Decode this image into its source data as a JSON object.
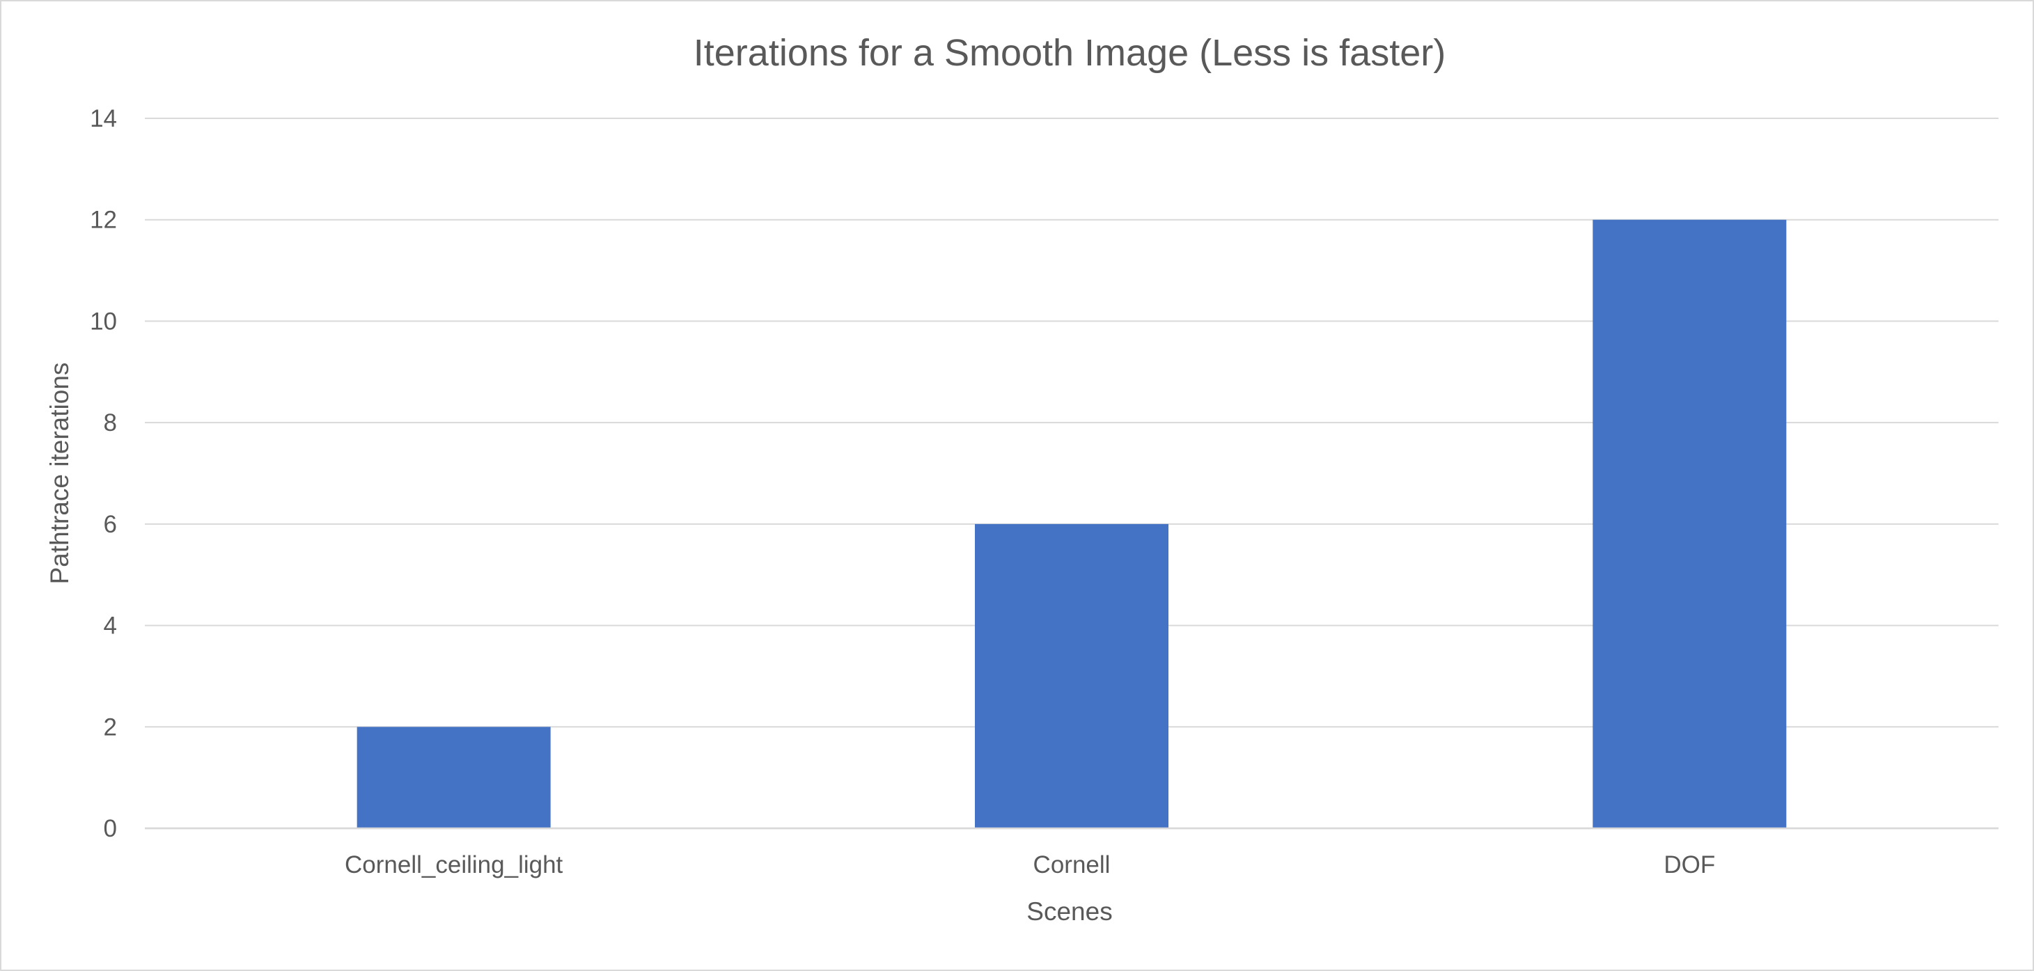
{
  "chart_data": {
    "type": "bar",
    "title": "Iterations for a Smooth Image (Less is faster)",
    "xlabel": "Scenes",
    "ylabel": "Pathtrace iterations",
    "categories": [
      "Cornell_ceiling_light",
      "Cornell",
      "DOF"
    ],
    "values": [
      2,
      6,
      12
    ],
    "ylim": [
      0,
      14
    ],
    "yticks": [
      0,
      2,
      4,
      6,
      8,
      10,
      12,
      14
    ],
    "grid": true,
    "legend": "none",
    "bar_color": "#4472C4"
  }
}
